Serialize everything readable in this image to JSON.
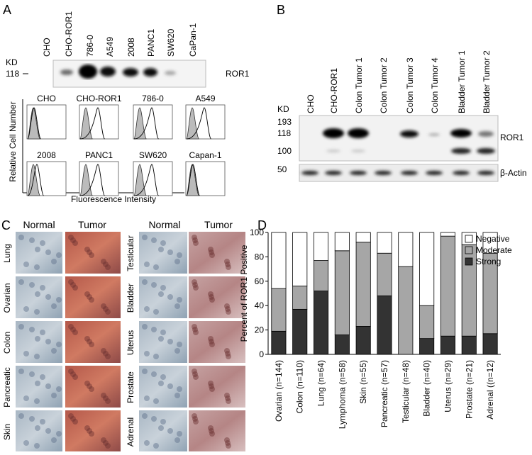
{
  "panel_labels": [
    "A",
    "B",
    "C",
    "D"
  ],
  "panel_a": {
    "lanes": [
      "CHO",
      "CHO-ROR1",
      "786-0",
      "A549",
      "2008",
      "PANC1",
      "SW620",
      "CaPan-1"
    ],
    "kd_label": "KD",
    "marker": "118",
    "band_label": "ROR1",
    "flow_titles": [
      "CHO",
      "CHO-ROR1",
      "786-0",
      "A549",
      "2008",
      "PANC1",
      "SW620",
      "Capan-1"
    ],
    "y_axis_label": "Relative Cell Number",
    "x_axis_label": "Fluorescence Intensity"
  },
  "panel_b": {
    "lanes": [
      "CHO",
      "CHO-ROR1",
      "Colon Tumor 1",
      "Colon Tumor 2",
      "Colon Tumor 3",
      "Colon Tumor 4",
      "Bladder Tumor 1",
      "Bladder Tumor 2"
    ],
    "kd_label": "KD",
    "markers": [
      "193",
      "118",
      "100",
      "50"
    ],
    "band_labels": [
      "ROR1",
      "β-Actin"
    ]
  },
  "panel_c": {
    "columns": [
      "Normal",
      "Tumor",
      "Normal",
      "Tumor"
    ],
    "tissues_left": [
      "Lung",
      "Ovarian",
      "Colon",
      "Pancreatic",
      "Skin"
    ],
    "tissues_right": [
      "Testicular",
      "Bladder",
      "Uterus",
      "Prostate",
      "Adrenal"
    ]
  },
  "chart_data": {
    "type": "stacked_bar",
    "y_label": "Percent of ROR1 Positive",
    "categories": [
      "Ovarian (n=144)",
      "Colon (n=110)",
      "Lung (n=64)",
      "Lymphoma (n=58)",
      "Skin (n=55)",
      "Pancreatic (n=57)",
      "Testicular (n=48)",
      "Bladder (n=40)",
      "Uterus (n=29)",
      "Prostate (n=21)",
      "Adrenal ((n=12)"
    ],
    "series": [
      {
        "name": "Strong",
        "color": "#333333",
        "values": [
          19,
          37,
          52,
          16,
          23,
          48,
          0,
          13,
          15,
          15,
          17
        ]
      },
      {
        "name": "Moderate",
        "color": "#a6a6a6",
        "values": [
          35,
          19,
          25,
          69,
          69,
          35,
          72,
          27,
          82,
          75,
          66
        ]
      },
      {
        "name": "Negative",
        "color": "#ffffff",
        "values": [
          46,
          44,
          23,
          15,
          8,
          17,
          28,
          60,
          3,
          10,
          17
        ]
      }
    ],
    "ylim": [
      0,
      100
    ],
    "yticks": [
      0,
      20,
      40,
      60,
      80,
      100
    ],
    "legend": "upper right"
  }
}
